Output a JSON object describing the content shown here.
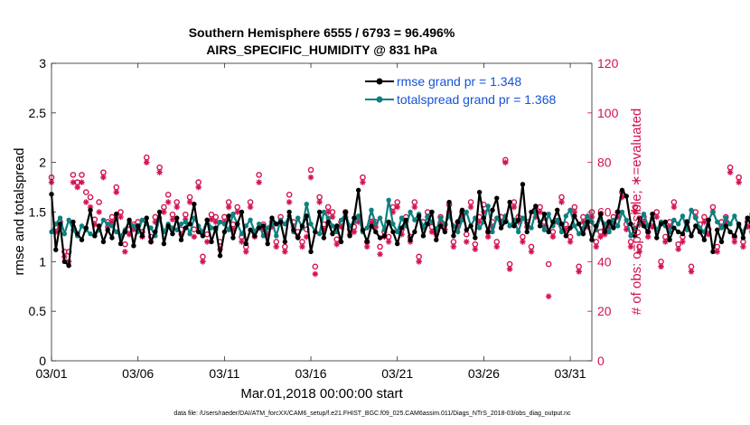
{
  "colors": {
    "rmse": "#000000",
    "spread": "#0d8080",
    "obs": "#d3124f",
    "legend_text": "#1553d8"
  },
  "chart_data": {
    "type": "line",
    "title_line1": "Southern Hemisphere 6555 / 6793 = 96.496%",
    "title_line2": "AIRS_SPECIFIC_HUMIDITY @ 831 hPa",
    "xlabel": "Mar.01,2018 00:00:00 start",
    "ylabel_left": "rmse and totalspread",
    "ylabel_right": "# of obs: o=possible; ∗=evaluated",
    "footer": "data file: /Users/raeder/DAI/ATM_forcXX/CAM6_setup/f.e21.FHIST_BGC.f09_025.CAM6assim.011/Diags_NTrS_2018-03/obs_diag_output.nc",
    "xlim": [
      0,
      31.25
    ],
    "ylim_left": [
      0,
      3
    ],
    "ylim_right": [
      0,
      120
    ],
    "x_ticks": [
      0,
      5,
      10,
      15,
      20,
      25,
      30
    ],
    "x_tick_labels": [
      "03/01",
      "03/06",
      "03/11",
      "03/16",
      "03/21",
      "03/26",
      "03/31"
    ],
    "y_ticks_left": [
      0,
      0.5,
      1,
      1.5,
      2,
      2.5,
      3
    ],
    "y_tick_labels_left": [
      "0",
      "0.5",
      "1",
      "1.5",
      "2",
      "2.5",
      "3"
    ],
    "y_ticks_right": [
      0,
      20,
      40,
      60,
      80,
      100,
      120
    ],
    "y_tick_labels_right": [
      "0",
      "20",
      "40",
      "60",
      "80",
      "100",
      "120"
    ],
    "legend": [
      {
        "label": "rmse grand pr = 1.348"
      },
      {
        "label": "totalspread grand pr = 1.368"
      }
    ],
    "x_start": 0,
    "x_step": 0.25,
    "series": [
      {
        "name": "rmse",
        "axis": "left",
        "values": [
          1.68,
          1.12,
          1.38,
          1.0,
          0.96,
          1.4,
          1.28,
          1.22,
          1.34,
          1.52,
          1.26,
          1.36,
          1.2,
          1.32,
          1.24,
          1.48,
          1.18,
          1.3,
          1.42,
          1.16,
          1.36,
          1.26,
          1.44,
          1.2,
          1.3,
          1.5,
          1.18,
          1.36,
          1.28,
          1.44,
          1.22,
          1.34,
          1.38,
          1.58,
          1.3,
          1.26,
          1.42,
          1.2,
          1.34,
          1.06,
          1.3,
          1.46,
          1.24,
          1.38,
          1.5,
          1.18,
          1.32,
          1.26,
          1.34,
          1.36,
          1.18,
          1.44,
          1.38,
          1.4,
          1.2,
          1.5,
          1.32,
          1.24,
          1.36,
          1.46,
          1.1,
          1.3,
          1.5,
          1.24,
          1.4,
          1.28,
          1.36,
          1.2,
          1.5,
          1.26,
          1.44,
          1.72,
          1.32,
          1.2,
          1.36,
          1.3,
          1.24,
          1.26,
          1.4,
          1.3,
          1.18,
          1.34,
          1.42,
          1.22,
          1.3,
          1.46,
          1.26,
          1.38,
          1.5,
          1.22,
          1.36,
          1.3,
          1.6,
          1.26,
          1.4,
          1.52,
          1.32,
          1.36,
          1.24,
          1.7,
          1.44,
          1.3,
          1.52,
          1.64,
          1.34,
          1.4,
          1.6,
          1.36,
          1.42,
          1.78,
          1.3,
          1.5,
          1.56,
          1.36,
          1.48,
          1.3,
          1.4,
          1.52,
          1.38,
          1.26,
          1.34,
          1.46,
          1.38,
          1.28,
          1.4,
          1.22,
          1.36,
          1.48,
          1.3,
          1.4,
          1.34,
          1.5,
          1.72,
          1.66,
          1.38,
          1.26,
          1.44,
          1.36,
          1.3,
          1.48,
          1.24,
          1.38,
          1.4,
          1.22,
          1.34,
          1.3,
          1.28,
          1.4,
          1.26,
          1.36,
          1.3,
          1.22,
          1.42,
          1.1,
          1.32,
          1.2,
          1.36,
          1.3,
          1.26,
          1.38,
          1.24,
          1.44,
          1.36,
          1.3,
          1.8,
          1.4,
          1.6,
          1.42,
          1.5,
          1.68,
          1.36,
          1.44,
          1.56,
          1.32,
          1.46,
          1.3,
          1.2,
          1.34,
          1.4,
          1.26,
          1.36,
          1.3,
          1.42,
          1.28,
          1.36,
          1.5,
          1.32,
          1.2,
          1.4,
          1.34,
          1.3,
          1.36,
          1.28,
          1.44,
          1.32,
          1.38,
          1.26,
          1.4,
          1.34,
          1.5,
          1.34,
          1.42,
          1.12,
          1.36,
          1.34,
          1.4,
          1.28,
          1.36,
          1.24,
          1.42,
          1.2,
          1.46,
          1.34,
          1.28,
          1.42,
          1.3,
          1.54,
          0.92,
          1.1,
          1.4,
          1.3,
          1.5,
          1.38,
          1.36,
          1.26,
          1.32,
          1.04,
          1.04,
          1.52,
          1.18,
          1.34,
          1.42,
          1.2,
          1.32,
          1.28
        ]
      },
      {
        "name": "totalspread",
        "axis": "left",
        "values": [
          1.3,
          1.38,
          1.44,
          1.28,
          1.42,
          1.32,
          1.26,
          1.36,
          1.32,
          1.28,
          1.26,
          1.32,
          1.42,
          1.38,
          1.36,
          1.3,
          1.26,
          1.32,
          1.4,
          1.36,
          1.3,
          1.42,
          1.38,
          1.34,
          1.26,
          1.44,
          1.3,
          1.38,
          1.34,
          1.32,
          1.38,
          1.4,
          1.28,
          1.44,
          1.36,
          1.3,
          1.42,
          1.34,
          1.32,
          1.4,
          1.38,
          1.32,
          1.48,
          1.38,
          1.28,
          1.36,
          1.42,
          1.3,
          1.38,
          1.26,
          1.34,
          1.4,
          1.26,
          1.42,
          1.38,
          1.46,
          1.3,
          1.44,
          1.34,
          1.58,
          1.38,
          1.3,
          1.28,
          1.5,
          1.44,
          1.36,
          1.3,
          1.42,
          1.48,
          1.36,
          1.4,
          1.46,
          1.3,
          1.34,
          1.52,
          1.38,
          1.44,
          1.32,
          1.62,
          1.38,
          1.3,
          1.44,
          1.36,
          1.5,
          1.42,
          1.48,
          1.34,
          1.46,
          1.4,
          1.32,
          1.44,
          1.38,
          1.46,
          1.36,
          1.3,
          1.42,
          1.5,
          1.36,
          1.44,
          1.34,
          1.4,
          1.56,
          1.3,
          1.44,
          1.38,
          1.46,
          1.36,
          1.42,
          1.3,
          1.44,
          1.38,
          1.34,
          1.5,
          1.4,
          1.32,
          1.48,
          1.36,
          1.42,
          1.3,
          1.46,
          1.52,
          1.36,
          1.28,
          1.34,
          1.46,
          1.4,
          1.32,
          1.44,
          1.38,
          1.3,
          1.42,
          1.36,
          1.5,
          1.42,
          1.26,
          1.34,
          1.38,
          1.48,
          1.36,
          1.44,
          1.32,
          1.4,
          1.36,
          1.3,
          1.42,
          1.38,
          1.46,
          1.32,
          1.52,
          1.44,
          1.34,
          1.3,
          1.42,
          1.5,
          1.4,
          1.34,
          1.44,
          1.38,
          1.46,
          1.36,
          1.3,
          1.42,
          1.48,
          1.4,
          1.34,
          1.38,
          1.44,
          1.3,
          1.36,
          1.42,
          1.38,
          1.46,
          1.32,
          1.4,
          1.36,
          1.46,
          1.62,
          1.3,
          1.26,
          1.42,
          1.4,
          1.36,
          1.32,
          1.44,
          1.46,
          1.38,
          1.34,
          1.4,
          1.28,
          1.34,
          1.44,
          1.3,
          1.4,
          1.36,
          1.42,
          1.32,
          1.3,
          1.44,
          1.4,
          1.36,
          1.34,
          1.48,
          1.3,
          1.42,
          1.56,
          1.34,
          1.38,
          1.44,
          1.4,
          1.34,
          1.36,
          1.44,
          1.3,
          1.42,
          1.36,
          1.46,
          1.32,
          1.4,
          1.24,
          1.38,
          1.44,
          1.36,
          1.32,
          1.42,
          1.4,
          1.3,
          1.36,
          1.46,
          1.32,
          1.38,
          1.4,
          1.5,
          1.36,
          1.4,
          1.42,
          1.26,
          1.34,
          1.44,
          1.38,
          1.4,
          1.3,
          1.42,
          1.38,
          1.46
        ]
      },
      {
        "name": "obs_possible",
        "axis": "right",
        "values": [
          74,
          54,
          56,
          44,
          44,
          75,
          72,
          75,
          68,
          66,
          57,
          64,
          76,
          56,
          58,
          70,
          60,
          47,
          53,
          55,
          56,
          52,
          82,
          50,
          58,
          78,
          62,
          67,
          59,
          64,
          53,
          59,
          66,
          53,
          72,
          42,
          51,
          59,
          58,
          48,
          58,
          64,
          55,
          62,
          50,
          46,
          64,
          52,
          75,
          55,
          53,
          56,
          48,
          58,
          46,
          67,
          56,
          52,
          48,
          53,
          77,
          38,
          66,
          55,
          62,
          60,
          49,
          56,
          60,
          53,
          54,
          58,
          74,
          48,
          58,
          56,
          46,
          52,
          50,
          62,
          64,
          53,
          58,
          50,
          64,
          42,
          56,
          60,
          54,
          53,
          58,
          55,
          63,
          48,
          56,
          60,
          51,
          64,
          47,
          58,
          63,
          52,
          56,
          48,
          58,
          81,
          39,
          64,
          58,
          50,
          56,
          46,
          60,
          62,
          56,
          39,
          52,
          58,
          66,
          55,
          50,
          62,
          38,
          58,
          56,
          60,
          48,
          52,
          53,
          56,
          58,
          60,
          68,
          55,
          48,
          62,
          46,
          58,
          52,
          56,
          60,
          40,
          50,
          56,
          64,
          47,
          50,
          56,
          38,
          60,
          55,
          58,
          53,
          62,
          46,
          56,
          58,
          78,
          50,
          74,
          48,
          56,
          54,
          46,
          58,
          63,
          47,
          58,
          57,
          54,
          50,
          53,
          48,
          62,
          40,
          60,
          52,
          56,
          46,
          58,
          62,
          55,
          64,
          52,
          48,
          57,
          60,
          38,
          50,
          55,
          62,
          56,
          48,
          54,
          58,
          60,
          59,
          52,
          64,
          40,
          58,
          52,
          54,
          48,
          56,
          58,
          62,
          54,
          50,
          60,
          41,
          58,
          56,
          53,
          47,
          54,
          58,
          60,
          60,
          56,
          43,
          58,
          53,
          48,
          56,
          52,
          42,
          50,
          52,
          62,
          58,
          48,
          54,
          55,
          60,
          75,
          52,
          62,
          30,
          56,
          58,
          42,
          0
        ]
      },
      {
        "name": "obs_evaluated",
        "axis": "right",
        "values": [
          72,
          52,
          54,
          42,
          40,
          72,
          70,
          72,
          64,
          62,
          55,
          60,
          74,
          54,
          56,
          68,
          58,
          44,
          51,
          53,
          54,
          50,
          80,
          48,
          56,
          76,
          60,
          64,
          57,
          62,
          51,
          57,
          64,
          50,
          70,
          40,
          48,
          57,
          56,
          45,
          56,
          62,
          53,
          60,
          48,
          44,
          62,
          50,
          72,
          53,
          51,
          54,
          46,
          56,
          44,
          64,
          54,
          50,
          46,
          50,
          74,
          35,
          64,
          53,
          60,
          58,
          47,
          54,
          58,
          51,
          52,
          56,
          72,
          46,
          56,
          54,
          43,
          50,
          48,
          60,
          62,
          51,
          56,
          48,
          62,
          40,
          54,
          58,
          52,
          51,
          56,
          53,
          60,
          46,
          54,
          58,
          48,
          62,
          45,
          56,
          60,
          50,
          54,
          46,
          56,
          80,
          37,
          62,
          56,
          48,
          54,
          44,
          58,
          60,
          54,
          26,
          50,
          56,
          64,
          53,
          48,
          60,
          36,
          56,
          54,
          58,
          46,
          50,
          51,
          54,
          56,
          58,
          66,
          53,
          46,
          60,
          44,
          56,
          50,
          54,
          58,
          38,
          48,
          54,
          62,
          45,
          48,
          54,
          36,
          58,
          53,
          56,
          51,
          60,
          44,
          54,
          56,
          76,
          48,
          72,
          46,
          54,
          52,
          44,
          56,
          60,
          45,
          56,
          55,
          52,
          48,
          51,
          46,
          60,
          38,
          58,
          50,
          54,
          44,
          56,
          60,
          53,
          62,
          50,
          46,
          55,
          58,
          36,
          48,
          53,
          60,
          54,
          46,
          52,
          56,
          58,
          57,
          50,
          62,
          38,
          56,
          50,
          52,
          46,
          54,
          56,
          60,
          52,
          48,
          58,
          29,
          56,
          54,
          51,
          45,
          52,
          56,
          58,
          58,
          54,
          41,
          56,
          51,
          46,
          54,
          50,
          40,
          48,
          50,
          60,
          56,
          46,
          52,
          53,
          58,
          72,
          50,
          60,
          19,
          54,
          56,
          40,
          0
        ]
      }
    ]
  }
}
